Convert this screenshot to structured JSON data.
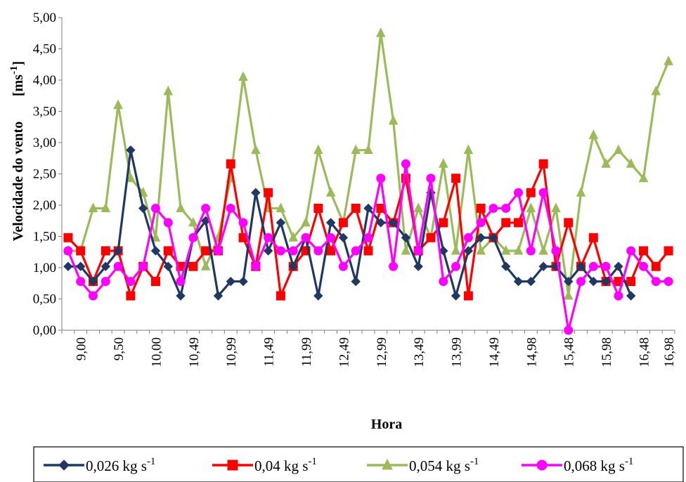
{
  "chart_data": {
    "type": "line",
    "xlabel": "Hora",
    "ylabel": "Velocidade do vento",
    "ylabel_unit": "[ms-1]",
    "ylim": [
      0,
      5
    ],
    "yticks": [
      "0,00",
      "0,50",
      "1,00",
      "1,50",
      "2,00",
      "2,50",
      "3,00",
      "3,50",
      "4,00",
      "4,50",
      "5,00"
    ],
    "x_tick_labels": [
      "9,00",
      "9,50",
      "10,00",
      "10,49",
      "10,99",
      "11,49",
      "11,99",
      "12,49",
      "12,99",
      "13,49",
      "13,99",
      "14,49",
      "14,98",
      "15,48",
      "15,98",
      "16,48",
      "16,98"
    ],
    "grid": false,
    "legend_position": "bottom",
    "series": [
      {
        "name": "0,026 kg s-1",
        "color": "#1f3864",
        "marker": "diamond",
        "values": [
          1.02,
          1.02,
          0.78,
          1.02,
          1.27,
          2.88,
          1.95,
          1.27,
          1.02,
          0.55,
          1.48,
          1.75,
          0.55,
          0.78,
          0.78,
          2.2,
          1.27,
          1.72,
          1.02,
          1.48,
          0.55,
          1.72,
          1.48,
          0.78,
          1.95,
          1.72,
          1.72,
          1.48,
          1.02,
          2.2,
          1.27,
          0.55,
          1.27,
          1.48,
          1.48,
          1.02,
          0.78,
          0.78,
          1.02,
          1.02,
          0.78,
          1.02,
          0.78,
          0.78,
          1.02,
          0.55
        ]
      },
      {
        "name": "0,04 kg s-1",
        "color": "#ff0000",
        "marker": "square",
        "values": [
          1.48,
          1.27,
          0.78,
          1.27,
          1.27,
          0.55,
          1.02,
          0.78,
          1.27,
          1.02,
          1.02,
          1.27,
          1.27,
          2.66,
          1.48,
          1.02,
          2.2,
          0.55,
          1.02,
          1.27,
          1.95,
          1.27,
          1.72,
          1.95,
          1.27,
          1.95,
          1.72,
          2.43,
          1.27,
          1.48,
          1.72,
          2.43,
          0.55,
          1.95,
          1.48,
          1.72,
          1.72,
          2.2,
          2.66,
          1.02,
          1.72,
          1.02,
          1.48,
          0.78,
          0.78,
          0.78,
          1.27,
          1.02,
          1.27
        ]
      },
      {
        "name": "0,054 kg s-1",
        "color": "#9bbb59",
        "marker": "triangle",
        "values": [
          1.27,
          1.27,
          1.95,
          1.95,
          3.6,
          2.43,
          2.2,
          1.48,
          3.82,
          1.95,
          1.72,
          1.02,
          1.48,
          2.43,
          4.05,
          2.88,
          1.95,
          1.95,
          1.48,
          1.72,
          2.88,
          2.2,
          1.72,
          2.88,
          2.88,
          4.75,
          3.35,
          1.27,
          1.95,
          1.48,
          2.66,
          1.27,
          2.88,
          1.27,
          1.48,
          1.27,
          1.27,
          1.95,
          1.27,
          1.95,
          0.55,
          2.2,
          3.12,
          2.66,
          2.88,
          2.66,
          2.43,
          3.82,
          4.3
        ]
      },
      {
        "name": "0,068 kg s-1",
        "color": "#ff00ff",
        "marker": "circle",
        "values": [
          1.27,
          0.78,
          0.55,
          0.78,
          1.02,
          0.78,
          1.02,
          1.95,
          1.72,
          0.78,
          1.48,
          1.95,
          1.27,
          1.95,
          1.72,
          1.02,
          1.48,
          1.27,
          1.27,
          1.48,
          1.27,
          1.48,
          1.02,
          1.27,
          1.48,
          2.43,
          1.02,
          2.66,
          1.27,
          2.43,
          0.78,
          1.02,
          1.48,
          1.72,
          1.95,
          1.95,
          2.2,
          1.27,
          2.2,
          1.27,
          0.0,
          0.78,
          1.02,
          1.02,
          0.55,
          1.27,
          1.02,
          0.78,
          0.78
        ]
      }
    ]
  }
}
